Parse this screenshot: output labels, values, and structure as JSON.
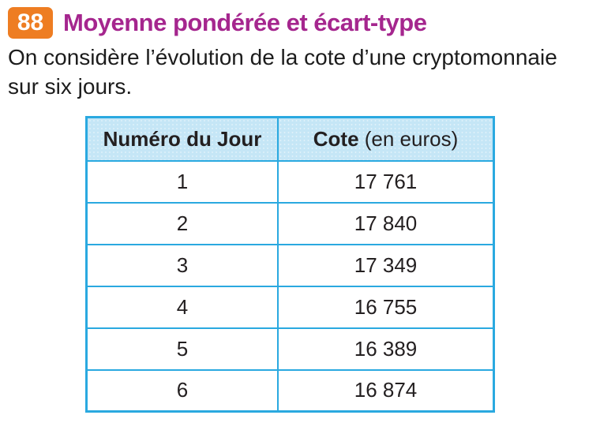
{
  "colors": {
    "badge-orange": "#ee7d22",
    "title-magenta": "#a5268e",
    "table-border": "#2aa9e0",
    "header-bg": "#c5e6f6",
    "text-dark": "#1c1c1c"
  },
  "exercise": {
    "number": "88",
    "title": "Moyenne pondérée et écart-type"
  },
  "intro": {
    "line1": "On considère l’évolution de la cote d’une cryptomonnaie",
    "line2": "sur six jours."
  },
  "table": {
    "header": {
      "col1": "Numéro du Jour",
      "col2_bold": "Cote",
      "col2_rest": " (en euros)"
    },
    "rows": [
      {
        "day": "1",
        "cote": "17 761"
      },
      {
        "day": "2",
        "cote": "17 840"
      },
      {
        "day": "3",
        "cote": "17 349"
      },
      {
        "day": "4",
        "cote": "16 755"
      },
      {
        "day": "5",
        "cote": "16 389"
      },
      {
        "day": "6",
        "cote": "16 874"
      }
    ]
  },
  "chart_data": {
    "type": "table",
    "title": "Moyenne pondérée et écart-type",
    "columns": [
      "Numéro du Jour",
      "Cote (en euros)"
    ],
    "rows": [
      [
        1,
        17761
      ],
      [
        2,
        17840
      ],
      [
        3,
        17349
      ],
      [
        4,
        16755
      ],
      [
        5,
        16389
      ],
      [
        6,
        16874
      ]
    ]
  }
}
